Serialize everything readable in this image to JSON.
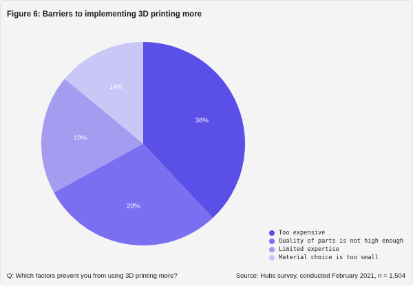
{
  "figure": {
    "title": "Figure 6: Barriers to implementing 3D printing more",
    "question": "Q: Which factors prevent you from using 3D printing more?",
    "source": "Source: Hubs survey, conducted February 2021, n = 1,504"
  },
  "chart_data": {
    "type": "pie",
    "categories": [
      "Too expensive",
      "Quality of parts is not high enough",
      "Limited expertise",
      "Material choice is too small"
    ],
    "values": [
      38,
      29,
      19,
      14
    ],
    "value_labels": [
      "38%",
      "29%",
      "19%",
      "14%"
    ],
    "colors": [
      "#5a4fe6",
      "#7b6ff1",
      "#a39cf0",
      "#cac7f6"
    ],
    "start_angle": "12 o'clock",
    "direction": "clockwise",
    "legend_position": "bottom-right"
  }
}
